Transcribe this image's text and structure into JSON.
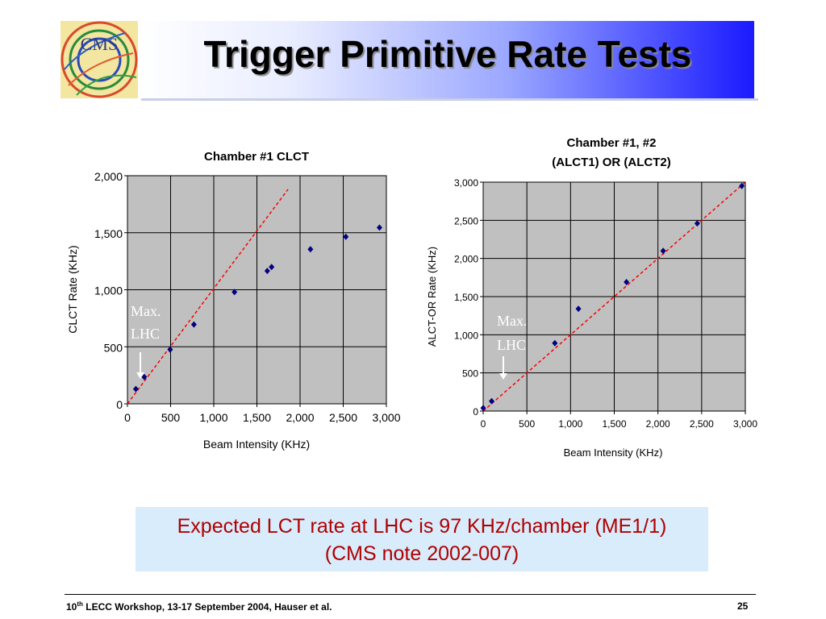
{
  "header": {
    "title": "Trigger Primitive Rate Tests",
    "logo_text": "CMS"
  },
  "annotation": {
    "line1": "Max.",
    "line2": "LHC"
  },
  "colors": {
    "plot_bg": "#c0c0c0",
    "marker": "#000080",
    "fit_line": "#ff0000",
    "caption_text": "#b00000",
    "caption_bg": "#d8ecfc"
  },
  "chart_data": [
    {
      "type": "scatter",
      "title": "Chamber #1  CLCT",
      "xlabel": "Beam Intensity (KHz)",
      "ylabel": "CLCT Rate (KHz)",
      "xlim": [
        0,
        3000
      ],
      "ylim": [
        0,
        2000
      ],
      "xticks": [
        "0",
        "500",
        "1,000",
        "1,500",
        "2,000",
        "2,500",
        "3,000"
      ],
      "yticks": [
        "0",
        "500",
        "1,000",
        "1,500",
        "2,000"
      ],
      "grid": true,
      "points": [
        {
          "x": 97,
          "y": 130
        },
        {
          "x": 195,
          "y": 235
        },
        {
          "x": 495,
          "y": 475
        },
        {
          "x": 770,
          "y": 695
        },
        {
          "x": 1240,
          "y": 980
        },
        {
          "x": 1620,
          "y": 1165
        },
        {
          "x": 1670,
          "y": 1200
        },
        {
          "x": 2120,
          "y": 1355
        },
        {
          "x": 2530,
          "y": 1465
        },
        {
          "x": 2920,
          "y": 1545
        }
      ],
      "fit_line": {
        "x1": 0,
        "y1": 0,
        "x2": 1860,
        "y2": 1880,
        "style": "dashed"
      },
      "marker_x": 97
    },
    {
      "type": "scatter",
      "title_lines": [
        "Chamber #1, #2",
        "(ALCT1) OR (ALCT2)"
      ],
      "xlabel": "Beam Intensity (KHz)",
      "ylabel": "ALCT-OR Rate (KHz)",
      "xlim": [
        0,
        3000
      ],
      "ylim": [
        0,
        3000
      ],
      "xticks": [
        "0",
        "500",
        "1,000",
        "1,500",
        "2,000",
        "2,500",
        "3,000"
      ],
      "yticks": [
        "0",
        "500",
        "1,000",
        "1,500",
        "2,000",
        "2,500",
        "3,000"
      ],
      "grid": true,
      "points": [
        {
          "x": 0,
          "y": 40
        },
        {
          "x": 97,
          "y": 130
        },
        {
          "x": 820,
          "y": 890
        },
        {
          "x": 1090,
          "y": 1340
        },
        {
          "x": 1640,
          "y": 1690
        },
        {
          "x": 2060,
          "y": 2100
        },
        {
          "x": 2450,
          "y": 2460
        },
        {
          "x": 2960,
          "y": 2950
        }
      ],
      "fit_line": {
        "x1": 0,
        "y1": 0,
        "x2": 3000,
        "y2": 3000,
        "style": "dashed"
      },
      "marker_x": 230
    }
  ],
  "caption": {
    "line1": "Expected LCT rate at LHC is 97 KHz/chamber (ME1/1)",
    "line2": "(CMS note 2002-007)"
  },
  "footer": {
    "left_num": "10",
    "left_sup": "th",
    "left_rest": " LECC Workshop, 13-17 September 2004, Hauser et al.",
    "page": "25"
  }
}
